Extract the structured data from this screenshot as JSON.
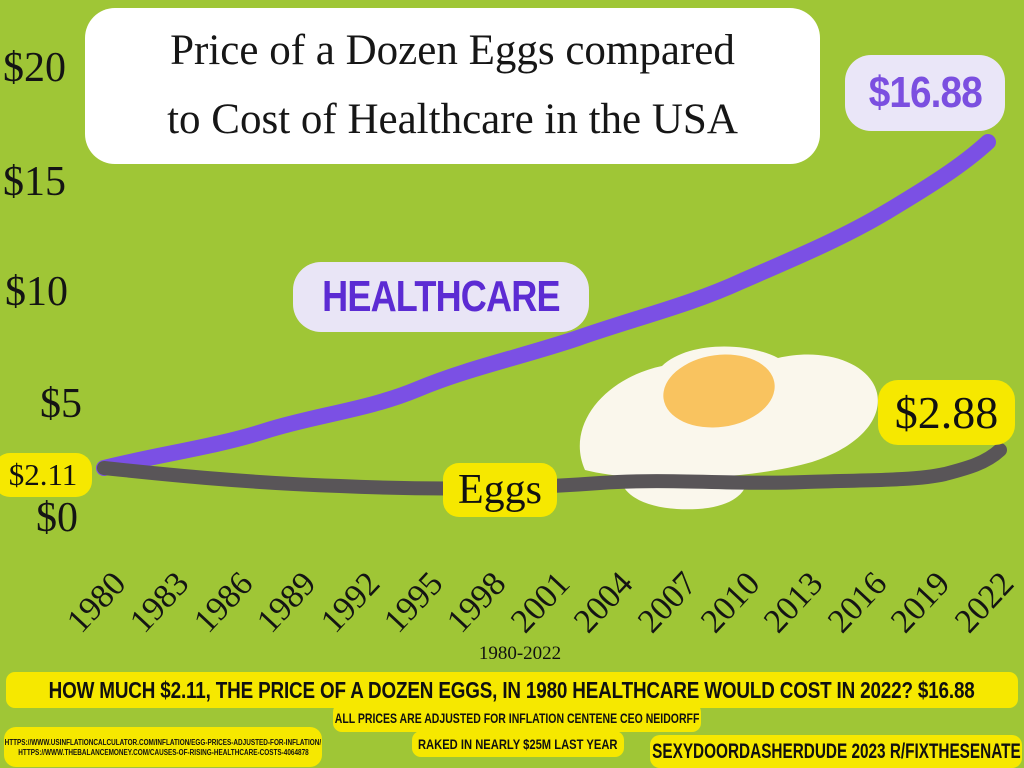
{
  "page": {
    "background_color": "#9fc636",
    "accent_yellow": "#f6e800",
    "accent_purple": "#7b50e4",
    "accent_lavender": "#eae6f8",
    "line_gray": "#595558"
  },
  "title": {
    "line1": "Price of a Dozen Eggs compared",
    "line2": "to Cost of Healthcare in the USA",
    "full": "Price of a Dozen Eggs compared to Cost of Healthcare in the USA"
  },
  "labels": {
    "healthcare_series": "HEALTHCARE",
    "healthcare_end_value": "$16.88",
    "eggs_series": "Eggs",
    "eggs_end_value": "$2.88",
    "start_value": "$2.11"
  },
  "y_axis": {
    "ticks": [
      "$20",
      "$15",
      "$10",
      "$5",
      "$0"
    ]
  },
  "x_axis": {
    "range_label": "1980-2022"
  },
  "chart_data": {
    "type": "line",
    "title": "Price of a Dozen Eggs compared to Cost of Healthcare in the USA",
    "categories": [
      "1980",
      "1983",
      "1986",
      "1989",
      "1992",
      "1995",
      "1998",
      "2001",
      "2004",
      "2007",
      "2010",
      "2013",
      "2016",
      "2019",
      "2022"
    ],
    "series": [
      {
        "name": "Healthcare",
        "color": "#7b50e4",
        "values": [
          2.11,
          3.2,
          4.3,
          5.4,
          6.4,
          7.3,
          8.3,
          9.3,
          10.4,
          11.5,
          12.7,
          13.9,
          15.0,
          16.0,
          16.88
        ]
      },
      {
        "name": "Eggs",
        "color": "#595558",
        "values": [
          2.11,
          1.95,
          1.8,
          1.75,
          1.7,
          1.7,
          1.72,
          1.75,
          1.8,
          1.75,
          1.78,
          1.75,
          1.8,
          1.9,
          2.88
        ]
      }
    ],
    "ylim": [
      0,
      20
    ],
    "y_tick_labels": [
      "$0",
      "$5",
      "$10",
      "$15",
      "$20"
    ],
    "extra_y_annotation": "$2.11",
    "x_range_label": "1980-2022",
    "annotations": {
      "start_1980": "$2.11",
      "healthcare_2022": "$16.88",
      "eggs_2022": "$2.88"
    },
    "legend_position": "inline-labels-on-lines",
    "grid": false
  },
  "illustration": {
    "name": "fried-egg",
    "white_color": "#faf7ec",
    "yolk_color": "#f9c35f"
  },
  "footer": {
    "headline": "HOW MUCH $2.11, THE PRICE OF A DOZEN EGGS, IN 1980 HEALTHCARE WOULD COST IN 2022? $16.88",
    "note_line1": "ALL PRICES ARE ADJUSTED FOR INFLATION CENTENE CEO NEIDORFF",
    "note_line2": "RAKED IN NEARLY $25M LAST YEAR",
    "sources": [
      "HTTPS://WWW.USINFLATIONCALCULATOR.COM/INFLATION/EGG-PRICES-ADJUSTED-FOR-INFLATION/",
      "HTTPS://WWW.THEBALANCEMONEY.COM/CAUSES-OF-RISING-HEALTHCARE-COSTS-4064878"
    ],
    "credit": "SEXYDOORDASHERDUDE 2023 R/FIXTHESENATE"
  }
}
